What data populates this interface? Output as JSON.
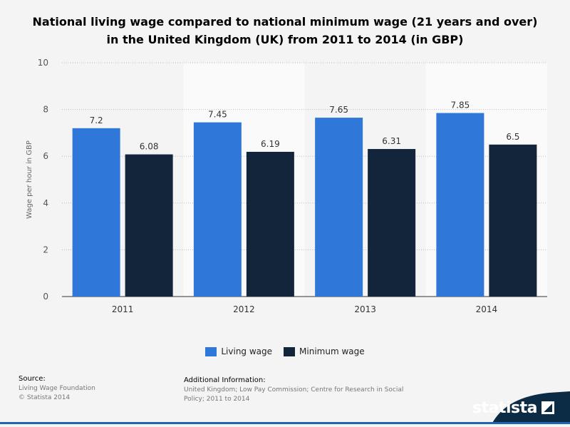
{
  "title_lines": [
    "National living wage compared to national minimum wage (21 years and over)",
    "in the United Kingdom (UK) from 2011 to 2014 (in GBP)"
  ],
  "colors": {
    "living": "#2f78d9",
    "minimum": "#13253a",
    "brand": "#0c2b45"
  },
  "chart_data": {
    "type": "bar",
    "title": "National living wage compared to national minimum wage (21 years and over) in the United Kingdom (UK) from 2011 to 2014 (in GBP)",
    "categories": [
      "2011",
      "2012",
      "2013",
      "2014"
    ],
    "series": [
      {
        "name": "Living wage",
        "values": [
          7.2,
          7.45,
          7.65,
          7.85
        ],
        "labels": [
          "7.2",
          "7.45",
          "7.65",
          "7.85"
        ]
      },
      {
        "name": "Minimum wage",
        "values": [
          6.08,
          6.19,
          6.31,
          6.5
        ],
        "labels": [
          "6.08",
          "6.19",
          "6.31",
          "6.5"
        ]
      }
    ],
    "xlabel": "",
    "ylabel": "Wage per hour in GBP",
    "ylim": [
      0,
      10
    ],
    "yticks": [
      "0",
      "2",
      "4",
      "6",
      "8",
      "10"
    ],
    "grid": true,
    "legend": "bottom-center"
  },
  "legend": {
    "living": "Living wage",
    "minimum": "Minimum wage"
  },
  "source": {
    "heading": "Source:",
    "lines": [
      "Living Wage Foundation",
      "© Statista 2014"
    ]
  },
  "additional": {
    "heading": "Additional Information:",
    "lines": [
      "United Kingdom; Low Pay Commission; Centre for Research in Social",
      "Policy; 2011 to 2014"
    ]
  },
  "brand": "statista"
}
